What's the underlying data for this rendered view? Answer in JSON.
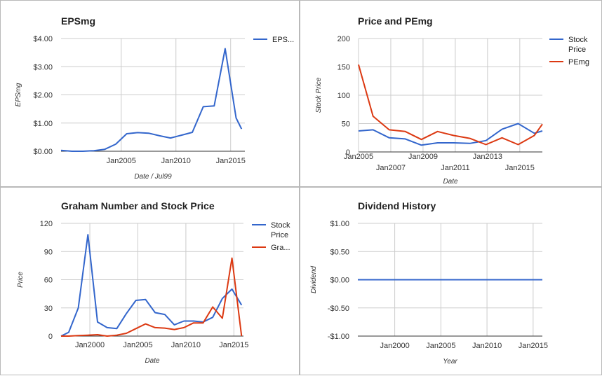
{
  "chart_data": [
    {
      "type": "line",
      "title": "EPSmg",
      "xlabel": "Date / Jul99",
      "ylabel": "EPSmg",
      "x_range": [
        1999.5,
        2016.3
      ],
      "ylim": [
        0,
        4
      ],
      "x_ticks": [
        {
          "x": 2005,
          "label": "Jan2005"
        },
        {
          "x": 2010,
          "label": "Jan2010"
        },
        {
          "x": 2015,
          "label": "Jan2015"
        }
      ],
      "y_ticks": [
        {
          "y": 0,
          "label": "$0.00"
        },
        {
          "y": 1,
          "label": "$1.00"
        },
        {
          "y": 2,
          "label": "$2.00"
        },
        {
          "y": 3,
          "label": "$3.00"
        },
        {
          "y": 4,
          "label": "$4.00"
        }
      ],
      "grid": true,
      "legend_position": "right",
      "series": [
        {
          "name": "EPS...",
          "color": "#3366cc",
          "x": [
            1999.5,
            2000.5,
            2001.5,
            2002.5,
            2003.5,
            2004.5,
            2005.5,
            2006.5,
            2007.5,
            2008.5,
            2009.5,
            2010.5,
            2011.5,
            2012.5,
            2013.5,
            2014.5,
            2015.5,
            2016.0
          ],
          "y": [
            0.03,
            0.0,
            0.0,
            0.02,
            0.07,
            0.25,
            0.62,
            0.66,
            0.64,
            0.55,
            0.47,
            0.57,
            0.67,
            1.58,
            1.61,
            3.64,
            1.18,
            0.79
          ]
        }
      ]
    },
    {
      "type": "line",
      "title": "Price and PEmg",
      "xlabel": "Date",
      "ylabel": "Stock Price",
      "x_range": [
        2005.0,
        2016.4
      ],
      "ylim": [
        0,
        200
      ],
      "x_ticks": [
        {
          "x": 2005,
          "label": "Jan2005"
        },
        {
          "x": 2007,
          "label": "Jan2007"
        },
        {
          "x": 2009,
          "label": "Jan2009"
        },
        {
          "x": 2011,
          "label": "Jan2011"
        },
        {
          "x": 2013,
          "label": "Jan2013"
        },
        {
          "x": 2015,
          "label": "Jan2015"
        }
      ],
      "y_ticks": [
        {
          "y": 0,
          "label": "0"
        },
        {
          "y": 50,
          "label": "50"
        },
        {
          "y": 100,
          "label": "100"
        },
        {
          "y": 150,
          "label": "150"
        },
        {
          "y": 200,
          "label": "200"
        }
      ],
      "grid": true,
      "legend_position": "right",
      "series": [
        {
          "name": "Stock Price",
          "color": "#3366cc",
          "x": [
            2005.0,
            2005.9,
            2006.9,
            2007.9,
            2008.9,
            2009.9,
            2010.9,
            2011.9,
            2012.9,
            2013.9,
            2014.9,
            2015.9,
            2016.4
          ],
          "y": [
            37,
            39,
            25,
            23,
            12,
            16,
            16,
            15,
            20,
            40,
            50,
            33,
            37
          ]
        },
        {
          "name": "PEmg",
          "color": "#dc3912",
          "x": [
            2005.0,
            2005.9,
            2006.9,
            2007.9,
            2008.9,
            2009.9,
            2010.9,
            2011.9,
            2012.9,
            2013.9,
            2014.9,
            2015.9,
            2016.4
          ],
          "y": [
            154,
            63,
            39,
            36,
            22,
            36,
            29,
            24,
            13,
            25,
            13,
            29,
            49
          ]
        }
      ]
    },
    {
      "type": "line",
      "title": "Graham Number and Stock Price",
      "xlabel": "Date",
      "ylabel": "Price",
      "x_range": [
        1997.0,
        2016.0
      ],
      "ylim": [
        0,
        120
      ],
      "x_ticks": [
        {
          "x": 2000,
          "label": "Jan2000"
        },
        {
          "x": 2005,
          "label": "Jan2005"
        },
        {
          "x": 2010,
          "label": "Jan2010"
        },
        {
          "x": 2015,
          "label": "Jan2015"
        }
      ],
      "y_ticks": [
        {
          "y": 0,
          "label": "0"
        },
        {
          "y": 30,
          "label": "30"
        },
        {
          "y": 60,
          "label": "60"
        },
        {
          "y": 90,
          "label": "90"
        },
        {
          "y": 120,
          "label": "120"
        }
      ],
      "grid": true,
      "legend_position": "right",
      "series": [
        {
          "name": "Stock Price",
          "color": "#3366cc",
          "x": [
            1997.0,
            1997.8,
            1998.8,
            1999.8,
            2000.8,
            2001.8,
            2002.8,
            2003.8,
            2004.8,
            2005.8,
            2006.8,
            2007.8,
            2008.8,
            2009.8,
            2010.8,
            2011.8,
            2012.8,
            2013.8,
            2014.8,
            2015.8
          ],
          "y": [
            0,
            4,
            30,
            108,
            15,
            9,
            8,
            24,
            38,
            39,
            25,
            23,
            12,
            16,
            16,
            15,
            20,
            40,
            50,
            33
          ]
        },
        {
          "name": "Gra...",
          "color": "#dc3912",
          "x": [
            1997.0,
            1997.8,
            1998.8,
            1999.8,
            2000.8,
            2001.8,
            2002.8,
            2003.8,
            2004.8,
            2005.8,
            2006.8,
            2007.8,
            2008.8,
            2009.8,
            2010.8,
            2011.8,
            2012.8,
            2013.8,
            2014.8,
            2015.8
          ],
          "y": [
            0,
            0,
            0.5,
            1,
            1.5,
            0,
            1,
            3,
            8,
            13,
            9,
            8.5,
            7,
            9,
            14,
            14,
            31,
            19,
            83,
            0
          ]
        }
      ]
    },
    {
      "type": "line",
      "title": "Dividend History",
      "xlabel": "Year",
      "ylabel": "Dividend",
      "x_range": [
        1996.0,
        2016.0
      ],
      "ylim": [
        -1,
        1
      ],
      "x_ticks": [
        {
          "x": 2000,
          "label": "Jan2000"
        },
        {
          "x": 2005,
          "label": "Jan2005"
        },
        {
          "x": 2010,
          "label": "Jan2010"
        },
        {
          "x": 2015,
          "label": "Jan2015"
        }
      ],
      "y_ticks": [
        {
          "y": -1,
          "label": "-$1.00"
        },
        {
          "y": -0.5,
          "label": "-$0.50"
        },
        {
          "y": 0,
          "label": "$0.00"
        },
        {
          "y": 0.5,
          "label": "$0.50"
        },
        {
          "y": 1,
          "label": "$1.00"
        }
      ],
      "grid": true,
      "legend_position": "none",
      "series": [
        {
          "name": "",
          "color": "#3366cc",
          "x": [
            1996.0,
            2016.0
          ],
          "y": [
            0,
            0
          ]
        }
      ]
    }
  ]
}
